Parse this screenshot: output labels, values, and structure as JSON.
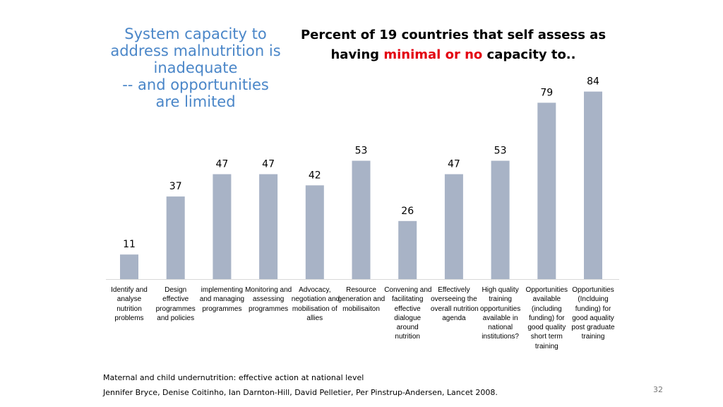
{
  "slide": {
    "side_title": [
      "System capacity to",
      "address malnutrition is",
      "inadequate",
      "-- and opportunities",
      "are limited"
    ],
    "chart_title_line1": "Percent of 19 countries that self assess as",
    "chart_title_line2_pre": "having ",
    "chart_title_line2_highlight": "minimal or no",
    "chart_title_line2_post": " capacity to..",
    "footer_line1": "Maternal and child undernutrition: effective action at national level",
    "footer_line2": "Jennifer Bryce, Denise Coitinho, Ian Darnton-Hill, David Pelletier, Per Pinstrup-Andersen, Lancet 2008.",
    "page_number": "32",
    "colors": {
      "bar": "#a8b3c6",
      "title_blue": "#4a86c8",
      "highlight_red": "#e3000f"
    }
  },
  "chart_data": {
    "type": "bar",
    "title": "Percent of 19 countries that self assess as having minimal or no capacity to..",
    "ylim": [
      0,
      100
    ],
    "grid": false,
    "categories": [
      [
        "Identify and",
        "analyse",
        "nutrition",
        "problems"
      ],
      [
        "Design",
        "effective",
        "programmes",
        "and policies"
      ],
      [
        "implementing",
        "and managing",
        "programmes"
      ],
      [
        "Monitoring and",
        "assessing",
        "programmes"
      ],
      [
        "Advocacy,",
        "negotiation and",
        "mobilisation of",
        "allies"
      ],
      [
        "Resource",
        "generation and",
        "mobilisaiton"
      ],
      [
        "Convening and",
        "facilitating",
        "effective",
        "dialogue",
        "around",
        "nutrition"
      ],
      [
        "Effectively",
        "overseeing the",
        "overall nutrition",
        "agenda"
      ],
      [
        "High quality",
        "training",
        "opportunities",
        "available in",
        "national",
        "institutions?"
      ],
      [
        "Opportunities",
        "available",
        "(including",
        "funding) for",
        "good quality",
        "short term",
        "training"
      ],
      [
        "Opportunities",
        "(Inclduing",
        "funding) for",
        "good aquality",
        "post graduate",
        "training"
      ]
    ],
    "values": [
      11,
      37,
      47,
      47,
      42,
      53,
      26,
      47,
      53,
      79,
      84
    ],
    "data_labels": [
      "11",
      "37",
      "47",
      "47",
      "42",
      "53",
      "26",
      "47",
      "53",
      "79",
      "84"
    ]
  }
}
